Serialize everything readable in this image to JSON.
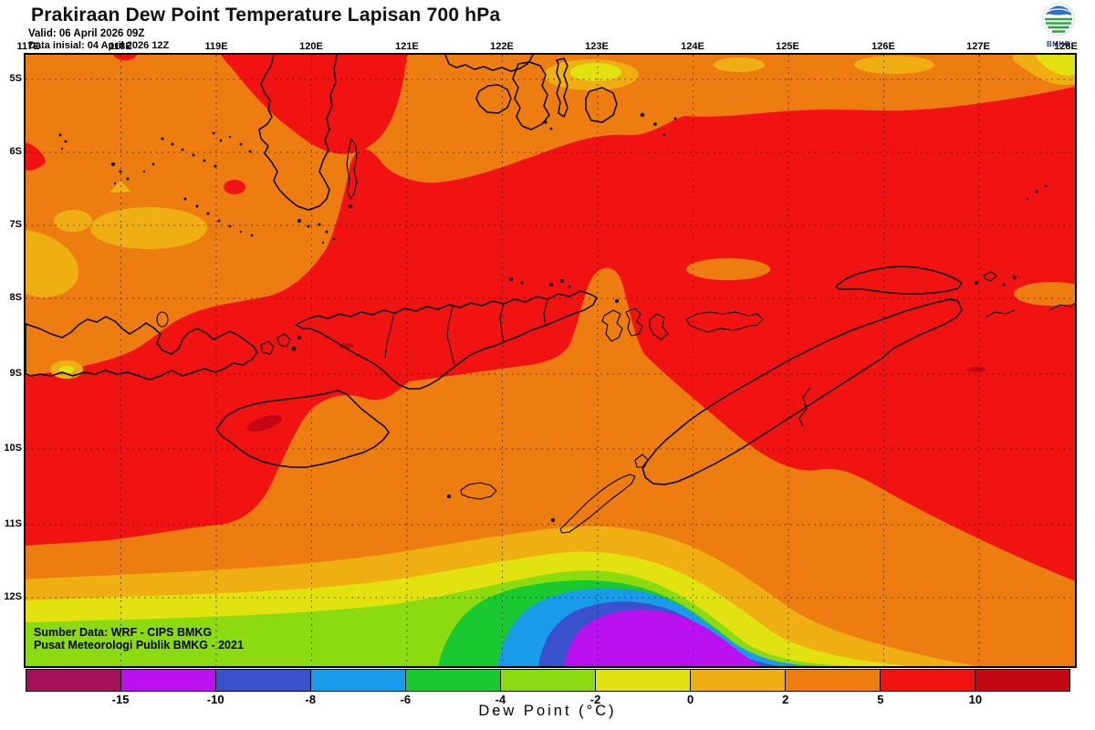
{
  "header": {
    "title": "Prakiraan Dew Point Temperature Lapisan 700 hPa",
    "valid_line": "Valid: 06 April 2026 09Z",
    "init_line": "Data inisial: 04 April 2026 12Z",
    "logo_text": "BMKG"
  },
  "map": {
    "lon_labels": [
      "117E",
      "118E",
      "119E",
      "120E",
      "121E",
      "122E",
      "123E",
      "124E",
      "125E",
      "126E",
      "127E",
      "128E"
    ],
    "lat_labels": [
      "5S",
      "6S",
      "7S",
      "8S",
      "9S",
      "10S",
      "11S",
      "12S"
    ],
    "credit_line1": "Sumber Data: WRF - CIPS BMKG",
    "credit_line2": "Pusat Meteorologi Publik BMKG - 2021"
  },
  "colorbar": {
    "title": "Dew Point (°C)",
    "tick_labels": [
      "-15",
      "-10",
      "-8",
      "-6",
      "-4",
      "-2",
      "0",
      "2",
      "5",
      "10"
    ],
    "colors": [
      "#A51159",
      "#BB10F0",
      "#3951CD",
      "#189BE8",
      "#19C92F",
      "#8CDB11",
      "#E3E211",
      "#EFAF12",
      "#EE7D11",
      "#F11312",
      "#C40813"
    ]
  },
  "chart_data": {
    "type": "heatmap",
    "title": "Prakiraan Dew Point Temperature Lapisan 700 hPa",
    "variable": "Dew Point",
    "unit": "°C",
    "level": "700 hPa",
    "valid_time": "06 April 2026 09Z",
    "initial_time": "04 April 2026 12Z",
    "x_axis": "Longitude",
    "x_range": [
      "117E",
      "128E"
    ],
    "y_axis": "Latitude",
    "y_range": [
      "5S",
      "12S"
    ],
    "scale_breaks": [
      -15,
      -10,
      -8,
      -6,
      -4,
      -2,
      0,
      2,
      5,
      10
    ],
    "scale_colors": [
      "#A51159",
      "#BB10F0",
      "#3951CD",
      "#189BE8",
      "#19C92F",
      "#8CDB11",
      "#E3E211",
      "#EFAF12",
      "#EE7D11",
      "#F11312",
      "#C40813"
    ],
    "legend_position": "bottom",
    "grid": "dotted graticule every 1 degree",
    "features": [
      {
        "region": "central and eastern seas (Flores Sea, Savu Sea, Banda Sea, around Timor and Wetar)",
        "value_range": "5 to 10",
        "color": "red"
      },
      {
        "region": "west and northwest (around Sumbawa, 117-120E) and south-of-Timor wedge",
        "value_range": "2 to 5",
        "color": "orange"
      },
      {
        "region": "small patches near 117-119E around 7-8S and along the northern edge 124-127E",
        "value_range": "0 to 2",
        "color": "gold"
      },
      {
        "region": "tiny spots on Sumba and Flores and east of Timor",
        "value_range": "above 10",
        "color": "dark red"
      },
      {
        "region": "cold minimum centered near 122-124E south of 12S, concentric rings gold-yellow-green-cyan-blue",
        "value_range": "below -15 at core",
        "color": "magenta"
      }
    ]
  }
}
